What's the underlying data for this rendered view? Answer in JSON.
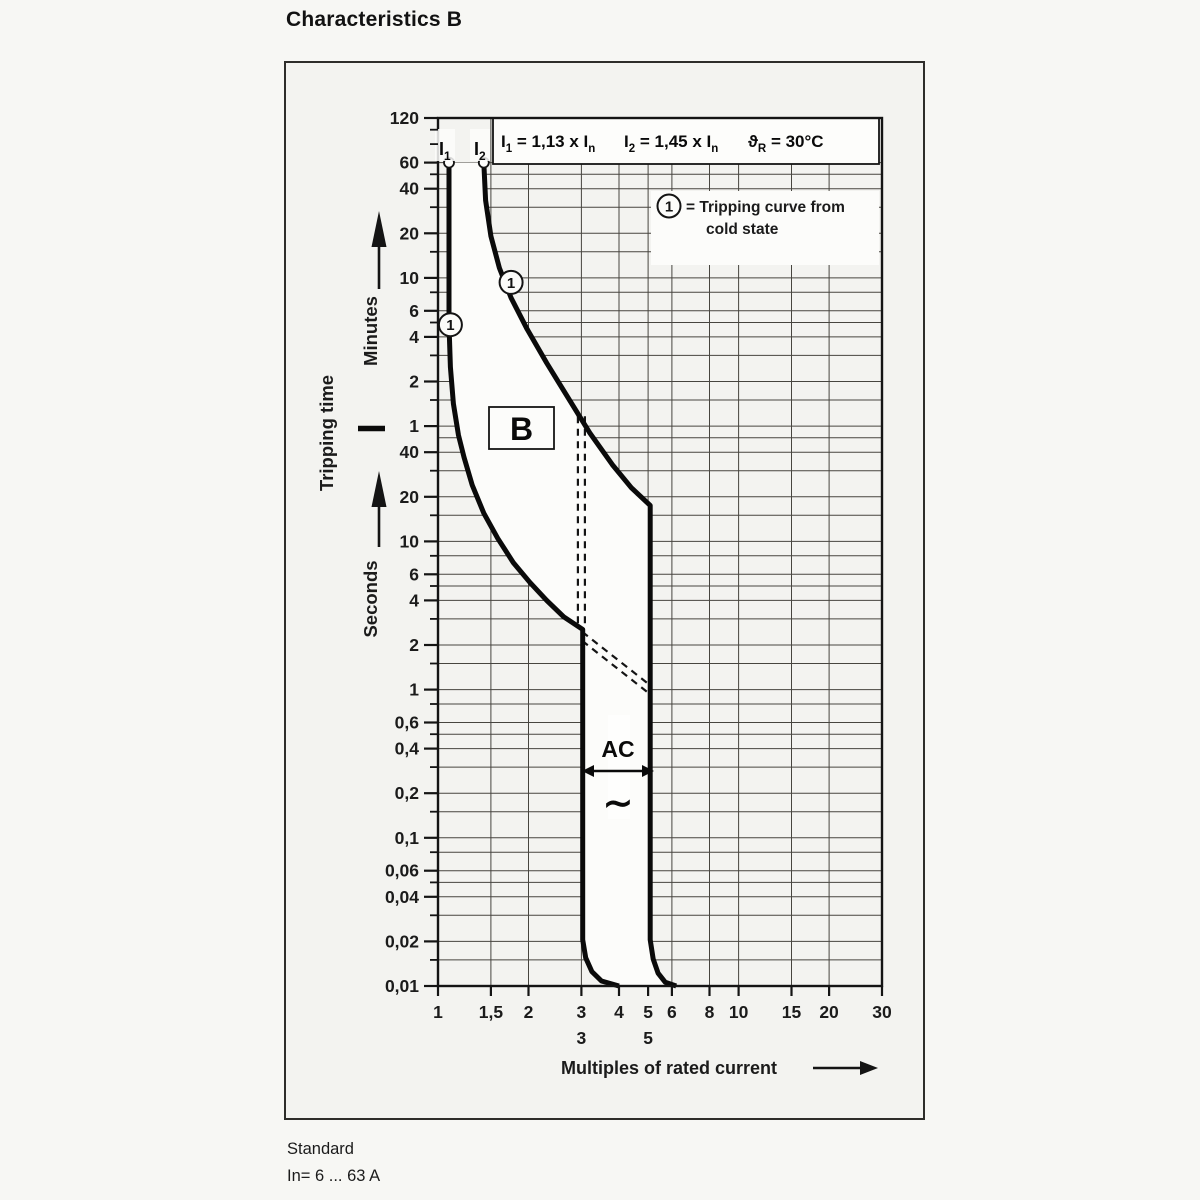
{
  "page": {
    "title": "Characteristics B",
    "footer": {
      "line1": "Standard",
      "line2": "In= 6 ... 63 A"
    }
  },
  "chart_data": {
    "type": "line",
    "title": "Characteristics B",
    "xlabel": "Multiples of rated current",
    "ylabel": "Tripping time",
    "x_scale": "log",
    "y_scale": "log",
    "xlim": [
      1,
      30
    ],
    "ylim_seconds": [
      0.01,
      7200
    ],
    "x_ticks": {
      "values": [
        1,
        1.5,
        2,
        3,
        4,
        5,
        6,
        8,
        10,
        15,
        20,
        30
      ],
      "labels": [
        "1",
        "1,5",
        "2",
        "3",
        "4",
        "5",
        "6",
        "8",
        "10",
        "15",
        "20",
        "30"
      ]
    },
    "x_secondary_ticks": [
      {
        "value": 3,
        "label": "3"
      },
      {
        "value": 5,
        "label": "5"
      }
    ],
    "y_units": [
      {
        "label": "Minutes",
        "major": {
          "values": [
            7200,
            3600,
            2400,
            1200,
            600,
            360,
            240,
            120,
            60
          ],
          "labels": [
            "120",
            "60",
            "40",
            "20",
            "10",
            "6",
            "4",
            "2",
            "1"
          ]
        },
        "minor": [
          6000,
          4800,
          3000,
          1800,
          900,
          480,
          300,
          180,
          90
        ]
      },
      {
        "label": "Seconds",
        "major": {
          "values": [
            40,
            20,
            10,
            6,
            4,
            2,
            1,
            0.6,
            0.4,
            0.2,
            0.1,
            0.06,
            0.04,
            0.02,
            0.01
          ],
          "labels": [
            "40",
            "20",
            "10",
            "6",
            "4",
            "2",
            "1",
            "0,6",
            "0,4",
            "0,2",
            "0,1",
            "0,06",
            "0,04",
            "0,02",
            "0,01"
          ]
        },
        "minor": [
          30,
          15,
          8,
          5,
          3,
          1.5,
          0.8,
          0.5,
          0.3,
          0.15,
          0.08,
          0.05,
          0.03,
          0.015
        ]
      }
    ],
    "grid": {
      "x_values": [
        1.5,
        2,
        3,
        4,
        5,
        6,
        8,
        10,
        15,
        20,
        30
      ],
      "y_values_seconds": [
        0.015,
        0.02,
        0.03,
        0.04,
        0.05,
        0.06,
        0.08,
        0.1,
        0.15,
        0.2,
        0.3,
        0.4,
        0.5,
        0.6,
        0.8,
        1,
        1.5,
        2,
        3,
        4,
        5,
        6,
        8,
        10,
        15,
        20,
        30,
        40,
        50,
        60,
        90,
        120,
        180,
        240,
        300,
        360,
        480,
        600,
        900,
        1200,
        1800,
        2400,
        3000,
        3600
      ]
    },
    "series": [
      {
        "name": "tripping-curve-cold-lower-I1",
        "style": "solid",
        "points": [
          [
            1.088,
            3600
          ],
          [
            1.088,
            290
          ],
          [
            1.1,
            150
          ],
          [
            1.125,
            85
          ],
          [
            1.17,
            52
          ],
          [
            1.22,
            37
          ],
          [
            1.3,
            24
          ],
          [
            1.42,
            15.5
          ],
          [
            1.58,
            10.5
          ],
          [
            1.78,
            7.2
          ],
          [
            2.02,
            5.3
          ],
          [
            2.3,
            4.0
          ],
          [
            2.62,
            3.1
          ],
          [
            3.03,
            2.55
          ],
          [
            3.03,
            0.0205
          ],
          [
            3.1,
            0.0155
          ],
          [
            3.25,
            0.0125
          ],
          [
            3.5,
            0.0108
          ],
          [
            4.0,
            0.01
          ]
        ]
      },
      {
        "name": "tripping-curve-cold-upper-I2",
        "style": "solid",
        "points": [
          [
            1.42,
            3600
          ],
          [
            1.44,
            2000
          ],
          [
            1.5,
            1150
          ],
          [
            1.6,
            700
          ],
          [
            1.75,
            440
          ],
          [
            1.98,
            270
          ],
          [
            2.3,
            160
          ],
          [
            2.72,
            92
          ],
          [
            3.2,
            54
          ],
          [
            3.8,
            33
          ],
          [
            4.4,
            23
          ],
          [
            5.08,
            17.5
          ],
          [
            5.08,
            0.0205
          ],
          [
            5.2,
            0.0152
          ],
          [
            5.4,
            0.0122
          ],
          [
            5.7,
            0.0106
          ],
          [
            6.2,
            0.01
          ]
        ]
      },
      {
        "name": "warm-state-vertical-dashed",
        "style": "dashed",
        "points": [
          [
            3.0,
            70
          ],
          [
            3.0,
            2.6
          ]
        ]
      },
      {
        "name": "warm-state-diagonal-dashed",
        "style": "dashed",
        "points": [
          [
            3.02,
            2.45
          ],
          [
            5.05,
            1.08
          ]
        ]
      }
    ],
    "markers": {
      "curve_top_circles": [
        {
          "x": 1.088,
          "t": 3600
        },
        {
          "x": 1.42,
          "t": 3600
        }
      ],
      "cold_state_markers": [
        {
          "label": "1",
          "x": 1.1,
          "t": 290
        },
        {
          "label": "1",
          "x": 1.75,
          "t": 560
        }
      ]
    },
    "annotations": {
      "curve_class": "B",
      "formulas": [
        {
          "parts": [
            {
              "t": "I"
            },
            {
              "t": "1",
              "sub": true
            },
            {
              "t": " = 1,13 x I",
              "up": true
            },
            {
              "t": "n",
              "sub": true
            }
          ]
        },
        {
          "parts": [
            {
              "t": "I"
            },
            {
              "t": "2",
              "sub": true
            },
            {
              "t": " = 1,45 x I",
              "up": true
            },
            {
              "t": "n",
              "sub": true
            }
          ]
        },
        {
          "parts": [
            {
              "t": "ϑ"
            },
            {
              "t": "R",
              "sub": true
            },
            {
              "t": " = 30°C",
              "up": true
            }
          ]
        }
      ],
      "current_labels": [
        {
          "parts": [
            {
              "t": "I"
            },
            {
              "t": "1",
              "sub": true
            }
          ]
        },
        {
          "parts": [
            {
              "t": "I"
            },
            {
              "t": "2",
              "sub": true
            }
          ]
        }
      ],
      "legend": {
        "symbol": "1",
        "line1": "=  Tripping curve from",
        "line2": "cold state"
      },
      "ac_label": {
        "text": "AC",
        "symbol": "∼"
      }
    }
  }
}
